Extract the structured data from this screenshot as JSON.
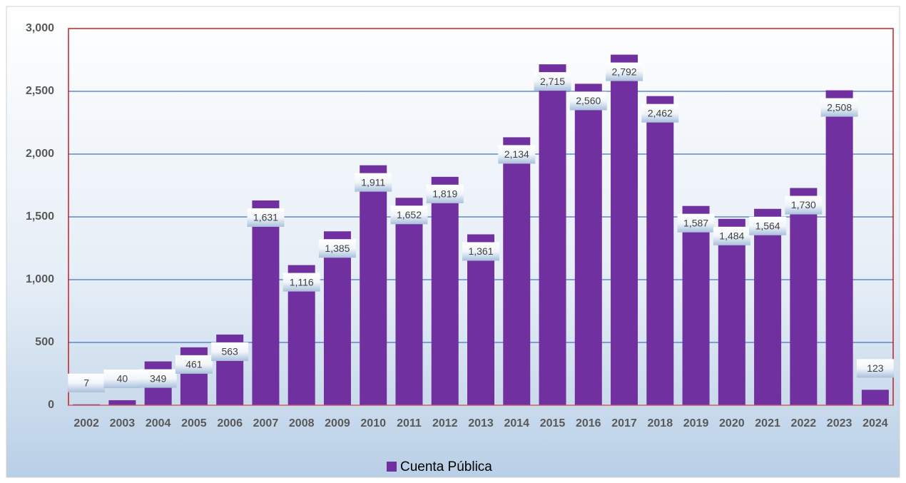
{
  "chart_data": {
    "type": "bar",
    "categories": [
      "2002",
      "2003",
      "2004",
      "2005",
      "2006",
      "2007",
      "2008",
      "2009",
      "2010",
      "2011",
      "2012",
      "2013",
      "2014",
      "2015",
      "2016",
      "2017",
      "2018",
      "2019",
      "2020",
      "2021",
      "2022",
      "2023",
      "2024"
    ],
    "series": [
      {
        "name": "Cuenta Pública",
        "color": "#7030a0",
        "values": [
          7,
          40,
          349,
          461,
          563,
          1631,
          1116,
          1385,
          1911,
          1652,
          1819,
          1361,
          2134,
          2715,
          2560,
          2792,
          2462,
          1587,
          1484,
          1564,
          1730,
          2508,
          123
        ],
        "value_labels": [
          "7",
          "40",
          "349",
          "461",
          "563",
          "1,631",
          "1,116",
          "1,385",
          "1,911",
          "1,652",
          "1,819",
          "1,361",
          "2,134",
          "2,715",
          "2,560",
          "2,792",
          "2,462",
          "1,587",
          "1,484",
          "1,564",
          "1,730",
          "2,508",
          "123"
        ]
      }
    ],
    "ylim": [
      0,
      3000
    ],
    "yticks": [
      0,
      500,
      {
        "value": 1000,
        "label": "1,000"
      },
      {
        "value": 1500,
        "label": "1,500"
      },
      {
        "value": 2000,
        "label": "2,000"
      },
      {
        "value": 2500,
        "label": "2,500"
      },
      {
        "value": 3000,
        "label": "3,000"
      }
    ],
    "grid": true,
    "legend": "bottom"
  }
}
